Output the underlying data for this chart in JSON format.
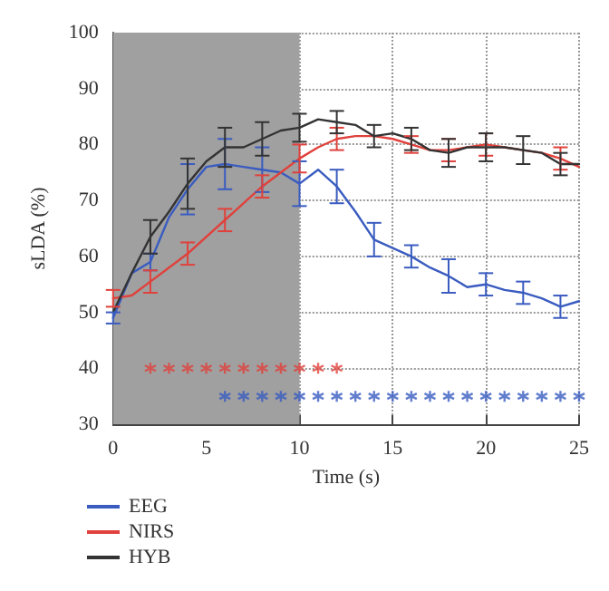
{
  "chart_data": {
    "type": "line",
    "xlabel": "Time (s)",
    "ylabel": "sLDA (%)",
    "x": [
      0,
      1,
      2,
      3,
      4,
      5,
      6,
      7,
      8,
      9,
      10,
      11,
      12,
      13,
      14,
      15,
      16,
      17,
      18,
      19,
      20,
      21,
      22,
      23,
      24,
      25
    ],
    "xlim": [
      0,
      25
    ],
    "ylim": [
      30,
      100
    ],
    "xticks": [
      0,
      5,
      10,
      15,
      20,
      25
    ],
    "yticks": [
      30,
      40,
      50,
      60,
      70,
      80,
      90,
      100
    ],
    "grid": true,
    "legend": "bottom left",
    "marker": "none",
    "line_style": "solid",
    "bands": [
      {
        "axis": "x",
        "from": 0,
        "to": 10,
        "color": "#a0a0a0"
      }
    ],
    "series": [
      {
        "name": "EEG",
        "color": "#3a5cc0",
        "values": [
          49,
          57,
          59,
          67,
          72,
          76,
          76.5,
          76,
          75.5,
          75,
          73,
          75.5,
          72.5,
          68,
          63,
          61.5,
          60,
          58,
          56.5,
          54.5,
          55,
          54,
          53.5,
          52.5,
          51,
          52
        ],
        "errors": [
          1,
          null,
          1.5,
          null,
          4.5,
          null,
          4.5,
          null,
          4,
          null,
          4,
          null,
          3,
          null,
          3,
          null,
          2,
          null,
          3,
          null,
          2,
          null,
          2,
          null,
          2,
          null
        ]
      },
      {
        "name": "NIRS",
        "color": "#e0413c",
        "values": [
          52.5,
          53,
          55.5,
          58,
          60.5,
          63.5,
          66.5,
          69.5,
          72.5,
          75,
          77.5,
          79.5,
          81,
          81.5,
          81.5,
          81,
          80,
          79,
          79,
          79.5,
          80,
          79.5,
          79,
          78.5,
          77.5,
          76
        ],
        "errors": [
          1.5,
          null,
          2,
          null,
          2,
          null,
          2,
          null,
          2,
          null,
          2.5,
          null,
          2,
          null,
          null,
          null,
          1.5,
          null,
          2,
          null,
          2,
          null,
          null,
          null,
          2,
          null
        ]
      },
      {
        "name": "HYB",
        "color": "#333333",
        "values": [
          50,
          57,
          63.5,
          68,
          73,
          77,
          79.5,
          79.5,
          81,
          82.5,
          83,
          84.5,
          84,
          83.5,
          81.5,
          82,
          81,
          79,
          78.5,
          79.5,
          79.5,
          79.5,
          79,
          78.5,
          76.5,
          76.5
        ],
        "errors": [
          null,
          null,
          3,
          null,
          4.5,
          null,
          3.5,
          null,
          3,
          null,
          2.5,
          null,
          2,
          null,
          2,
          null,
          2,
          null,
          2.5,
          null,
          2.5,
          null,
          2.5,
          null,
          2,
          null
        ]
      },
      {
        "type": "scatter",
        "color": "#e0413c",
        "marker": "cross",
        "x": [
          2,
          3,
          4,
          5,
          6,
          7,
          8,
          9,
          10,
          11,
          12
        ],
        "values": [
          40,
          40,
          40,
          40,
          40,
          40,
          40,
          40,
          40,
          40,
          40
        ]
      },
      {
        "type": "scatter",
        "color": "#3a5cc0",
        "marker": "cross",
        "x": [
          6,
          7,
          8,
          9,
          10,
          11,
          12,
          13,
          14,
          15,
          16,
          17,
          18,
          19,
          20,
          21,
          22,
          23,
          24,
          25
        ],
        "values": [
          35,
          35,
          35,
          35,
          35,
          35,
          35,
          35,
          35,
          35,
          35,
          35,
          35,
          35,
          35,
          35,
          35,
          35,
          35,
          35
        ]
      }
    ]
  }
}
